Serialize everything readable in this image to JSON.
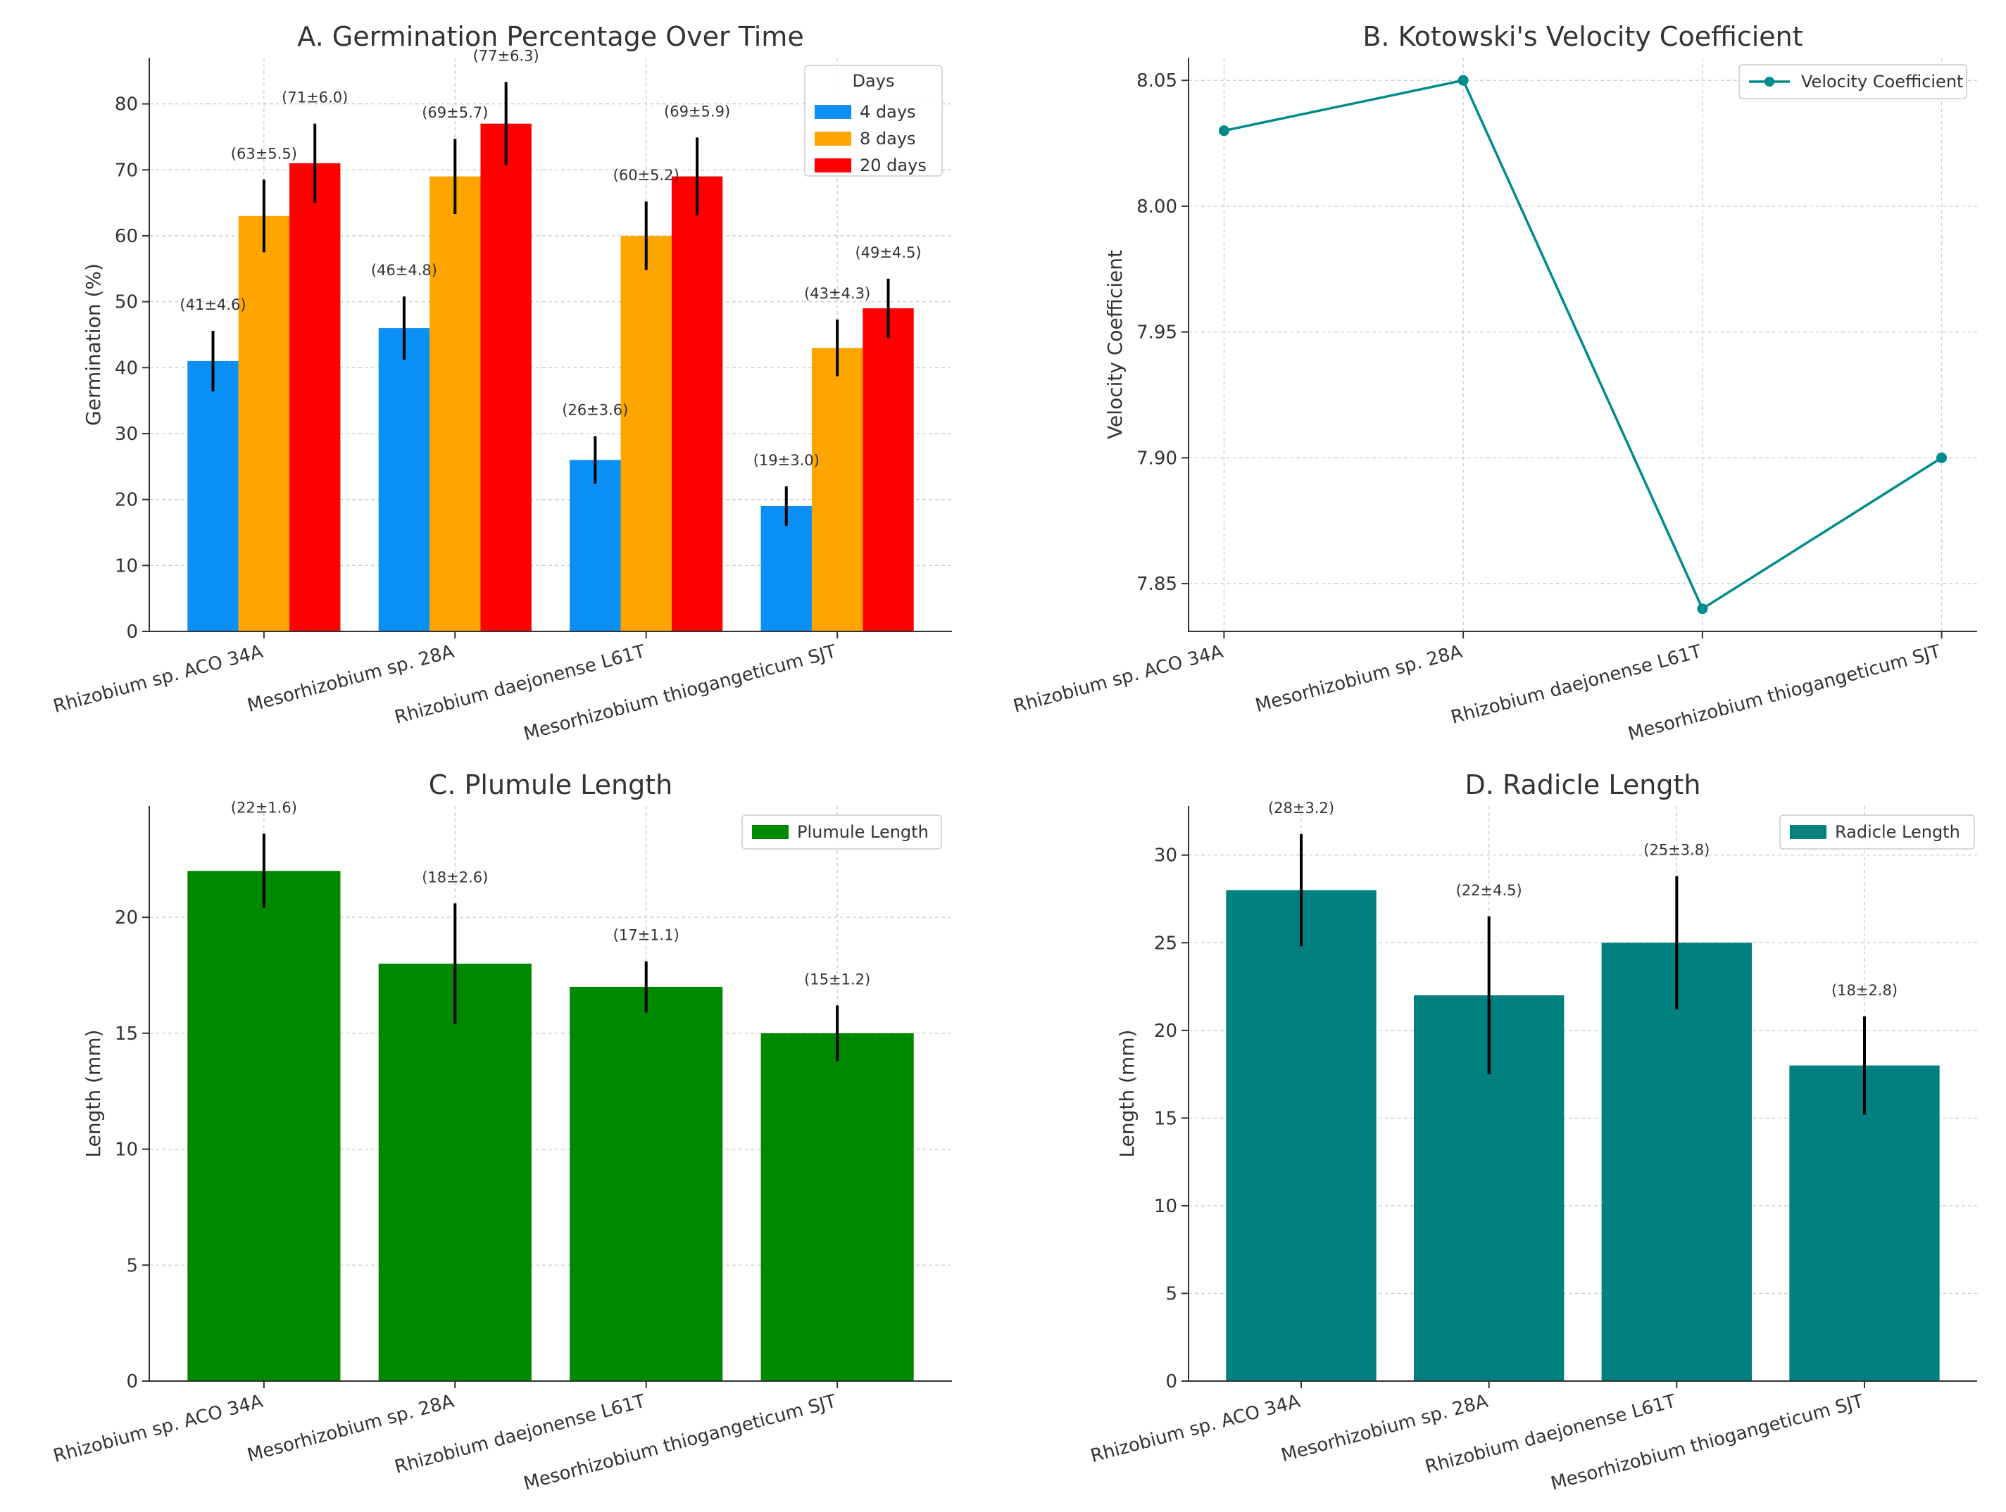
{
  "chart_data": [
    {
      "type": "bar",
      "title": "A. Germination Percentage Over Time",
      "xlabel": "",
      "ylabel": "Germination (%)",
      "ylim": [
        0,
        87
      ],
      "yticks": [
        0,
        10,
        20,
        30,
        40,
        50,
        60,
        70,
        80
      ],
      "categories": [
        "Rhizobium sp. ACO 34A",
        "Mesorhizobium sp. 28A",
        "Rhizobium daejonense L61T",
        "Mesorhizobium thiogangeticum SJT"
      ],
      "legend_title": "Days",
      "legend_position": "top-right",
      "grid": true,
      "series": [
        {
          "name": "4 days",
          "color": "#0a8ff5",
          "values": [
            41,
            46,
            26,
            19
          ],
          "errors": [
            4.6,
            4.8,
            3.6,
            3.0
          ],
          "labels": [
            "(41±4.6)",
            "(46±4.8)",
            "(26±3.6)",
            "(19±3.0)"
          ]
        },
        {
          "name": "8 days",
          "color": "#ffa500",
          "values": [
            63,
            69,
            60,
            43
          ],
          "errors": [
            5.5,
            5.7,
            5.2,
            4.3
          ],
          "labels": [
            "(63±5.5)",
            "(69±5.7)",
            "(60±5.2)",
            "(43±4.3)"
          ]
        },
        {
          "name": "20 days",
          "color": "#ff0000",
          "values": [
            71,
            77,
            69,
            49
          ],
          "errors": [
            6.0,
            6.3,
            5.9,
            4.5
          ],
          "labels": [
            "(71±6.0)",
            "(77±6.3)",
            "(69±5.9)",
            "(49±4.5)"
          ]
        }
      ]
    },
    {
      "type": "line",
      "title": "B. Kotowski's Velocity Coefficient",
      "xlabel": "",
      "ylabel": "Velocity Coefficient",
      "ylim": [
        7.831,
        8.059
      ],
      "yticks": [
        7.85,
        7.9,
        7.95,
        8.0,
        8.05
      ],
      "ytick_labels": [
        "7.85",
        "7.90",
        "7.95",
        "8.00",
        "8.05"
      ],
      "categories": [
        "Rhizobium sp. ACO 34A",
        "Mesorhizobium sp. 28A",
        "Rhizobium daejonense L61T",
        "Mesorhizobium thiogangeticum SJT"
      ],
      "legend_position": "top-right",
      "grid": true,
      "series": [
        {
          "name": "Velocity Coefficient",
          "color": "#008b8b",
          "values": [
            8.03,
            8.05,
            7.84,
            7.9
          ]
        }
      ]
    },
    {
      "type": "bar",
      "title": "C. Plumule Length",
      "xlabel": "",
      "ylabel": "Length (mm)",
      "ylim": [
        0,
        24.8
      ],
      "yticks": [
        0,
        5,
        10,
        15,
        20
      ],
      "categories": [
        "Rhizobium sp. ACO 34A",
        "Mesorhizobium sp. 28A",
        "Rhizobium daejonense L61T",
        "Mesorhizobium thiogangeticum SJT"
      ],
      "legend_position": "top-right",
      "grid": true,
      "series": [
        {
          "name": "Plumule Length",
          "color": "#008800",
          "values": [
            22,
            18,
            17,
            15
          ],
          "errors": [
            1.6,
            2.6,
            1.1,
            1.2
          ],
          "labels": [
            "(22±1.6)",
            "(18±2.6)",
            "(17±1.1)",
            "(15±1.2)"
          ]
        }
      ]
    },
    {
      "type": "bar",
      "title": "D. Radicle Length",
      "xlabel": "",
      "ylabel": "Length (mm)",
      "ylim": [
        0,
        32.8
      ],
      "yticks": [
        0,
        5,
        10,
        15,
        20,
        25,
        30
      ],
      "categories": [
        "Rhizobium sp. ACO 34A",
        "Mesorhizobium sp. 28A",
        "Rhizobium daejonense L61T",
        "Mesorhizobium thiogangeticum SJT"
      ],
      "legend_position": "top-right",
      "grid": true,
      "series": [
        {
          "name": "Radicle Length",
          "color": "#008080",
          "values": [
            28,
            22,
            25,
            18
          ],
          "errors": [
            3.2,
            4.5,
            3.8,
            2.8
          ],
          "labels": [
            "(28±3.2)",
            "(22±4.5)",
            "(25±3.8)",
            "(18±2.8)"
          ]
        }
      ]
    }
  ]
}
